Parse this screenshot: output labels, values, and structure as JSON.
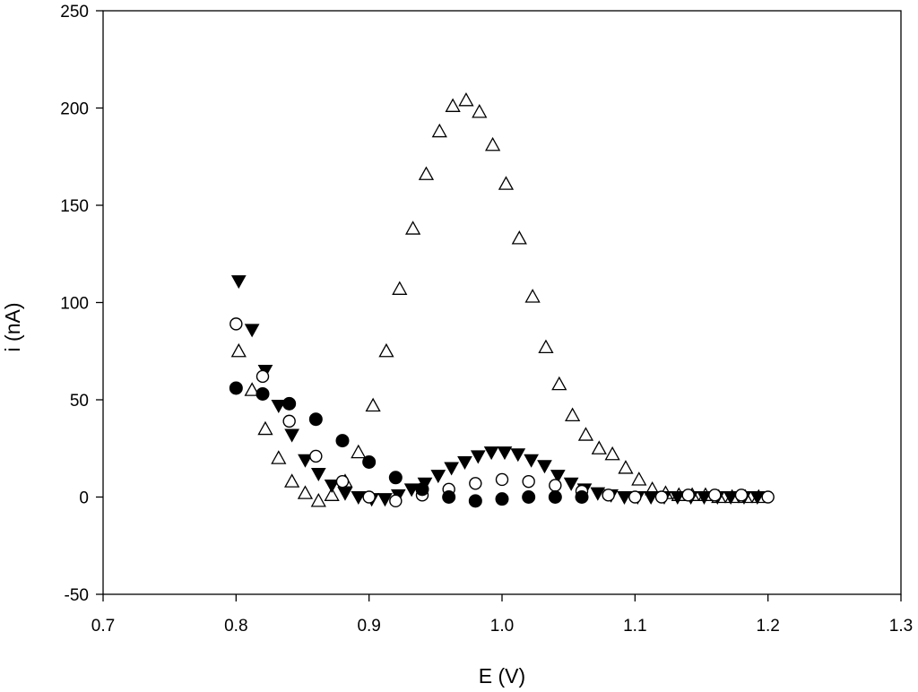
{
  "chart_data": {
    "type": "scatter",
    "title": "",
    "xlabel": "E (V)",
    "ylabel": "i (nA)",
    "xlim": [
      0.7,
      1.3
    ],
    "ylim": [
      -50,
      250
    ],
    "x_ticks": [
      0.7,
      0.8,
      0.9,
      1.0,
      1.1,
      1.2,
      1.3
    ],
    "x_tick_labels": [
      "0.7",
      "0.8",
      "0.9",
      "1.0",
      "1.1",
      "1.2",
      "1.3"
    ],
    "y_ticks": [
      -50,
      0,
      50,
      100,
      150,
      200,
      250
    ],
    "y_tick_labels": [
      "-50",
      "0",
      "50",
      "100",
      "150",
      "200",
      "250"
    ],
    "grid": false,
    "legend": "none",
    "series": [
      {
        "marker": "open-triangle-up",
        "color": "#000000",
        "x": [
          0.802,
          0.812,
          0.822,
          0.832,
          0.842,
          0.852,
          0.862,
          0.872,
          0.882,
          0.892,
          0.903,
          0.913,
          0.923,
          0.933,
          0.943,
          0.953,
          0.963,
          0.973,
          0.983,
          0.993,
          1.003,
          1.013,
          1.023,
          1.033,
          1.043,
          1.053,
          1.063,
          1.073,
          1.083,
          1.093,
          1.103,
          1.113,
          1.123,
          1.133,
          1.143,
          1.153,
          1.163,
          1.173,
          1.183,
          1.193
        ],
        "y": [
          75,
          55,
          35,
          20,
          8,
          2,
          -2,
          1,
          8,
          23,
          47,
          75,
          107,
          138,
          166,
          188,
          201,
          204,
          198,
          181,
          161,
          133,
          103,
          77,
          58,
          42,
          32,
          25,
          22,
          15,
          9,
          4,
          2,
          1,
          1,
          1,
          0,
          0,
          0,
          0
        ]
      },
      {
        "marker": "filled-triangle-down",
        "color": "#000000",
        "x": [
          0.802,
          0.812,
          0.822,
          0.832,
          0.842,
          0.852,
          0.862,
          0.872,
          0.882,
          0.892,
          0.902,
          0.912,
          0.922,
          0.932,
          0.942,
          0.952,
          0.962,
          0.972,
          0.982,
          0.992,
          1.002,
          1.012,
          1.022,
          1.032,
          1.042,
          1.052,
          1.062,
          1.072,
          1.082,
          1.092,
          1.102,
          1.112,
          1.122,
          1.132,
          1.142,
          1.152,
          1.162,
          1.172,
          1.182,
          1.192
        ],
        "y": [
          111,
          86,
          65,
          47,
          32,
          19,
          12,
          6,
          2,
          0,
          -1,
          -1,
          1,
          4,
          7,
          11,
          15,
          18,
          21,
          23,
          23,
          22,
          19,
          16,
          11,
          7,
          4,
          2,
          1,
          0,
          0,
          0,
          0,
          0,
          0,
          0,
          0,
          0,
          0,
          0
        ]
      },
      {
        "marker": "open-circle",
        "color": "#000000",
        "x": [
          0.8,
          0.82,
          0.84,
          0.86,
          0.88,
          0.9,
          0.92,
          0.94,
          0.96,
          0.98,
          1.0,
          1.02,
          1.04,
          1.06,
          1.08,
          1.1,
          1.12,
          1.14,
          1.16,
          1.18,
          1.2
        ],
        "y": [
          89,
          62,
          39,
          21,
          8,
          0,
          -2,
          1,
          4,
          7,
          9,
          8,
          6,
          3,
          1,
          0,
          0,
          1,
          1,
          1,
          0
        ]
      },
      {
        "marker": "filled-circle",
        "color": "#000000",
        "x": [
          0.8,
          0.82,
          0.84,
          0.86,
          0.88,
          0.9,
          0.92,
          0.94,
          0.96,
          0.98,
          1.0,
          1.02,
          1.04,
          1.06
        ],
        "y": [
          56,
          53,
          48,
          40,
          29,
          18,
          10,
          4,
          0,
          -2,
          -1,
          0,
          0,
          0
        ]
      }
    ]
  }
}
